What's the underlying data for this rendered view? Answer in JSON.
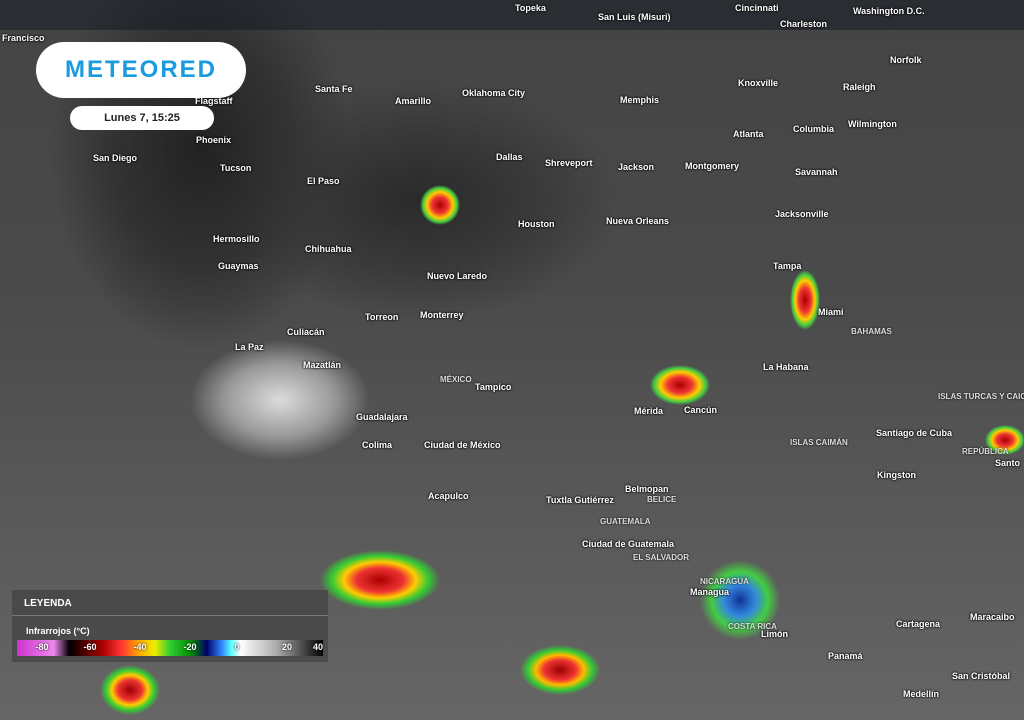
{
  "brand": {
    "logo": "METEORED",
    "date": "Lunes 7, 15:25",
    "color": "#1a9be0"
  },
  "legend": {
    "title": "LEYENDA",
    "subtitle": "Infrarrojos (°C)",
    "ticks": [
      "-80",
      "-60",
      "-40",
      "-20",
      "0",
      "20",
      "40"
    ]
  },
  "cities": [
    "Topeka",
    "San Luis (Misuri)",
    "Cincinnati",
    "Charleston",
    "Washington D.C.",
    "Francisco",
    "Norfolk",
    "Santa Fe",
    "Amarillo",
    "Oklahoma City",
    "Memphis",
    "Knoxville",
    "Raleigh",
    "Flagstaff",
    "Phoenix",
    "Atlanta",
    "Columbia",
    "Wilmington",
    "San Diego",
    "Tucson",
    "Dallas",
    "Shreveport",
    "Jackson",
    "Montgomery",
    "Savannah",
    "El Paso",
    "Houston",
    "Nueva Orleans",
    "Jacksonville",
    "Hermosillo",
    "Chihuahua",
    "Guaymas",
    "Nuevo Laredo",
    "Tampa",
    "Miami",
    "Torreon",
    "Monterrey",
    "Culiacán",
    "La Paz",
    "Mazatlán",
    "La Habana",
    "Tampico",
    "Mérida",
    "Cancún",
    "Guadalajara",
    "Colima",
    "Ciudad de México",
    "Santiago de Cuba",
    "Kingston",
    "Belmopan",
    "Acapulco",
    "Tuxtla Gutiérrez",
    "Ciudad de Guatemala",
    "Managua",
    "Cartagena",
    "Maracaibo",
    "Limón",
    "Panamá",
    "San Cristóbal",
    "Medellín",
    "Santo"
  ],
  "countries": [
    "BAHAMAS",
    "MÉXICO",
    "ISLAS TURCAS Y CAICOS",
    "ISLAS CAIMÁN",
    "REPÚBLICA",
    "BELICE",
    "GUATEMALA",
    "EL SALVADOR",
    "NICARAGUA",
    "COSTA RICA"
  ]
}
